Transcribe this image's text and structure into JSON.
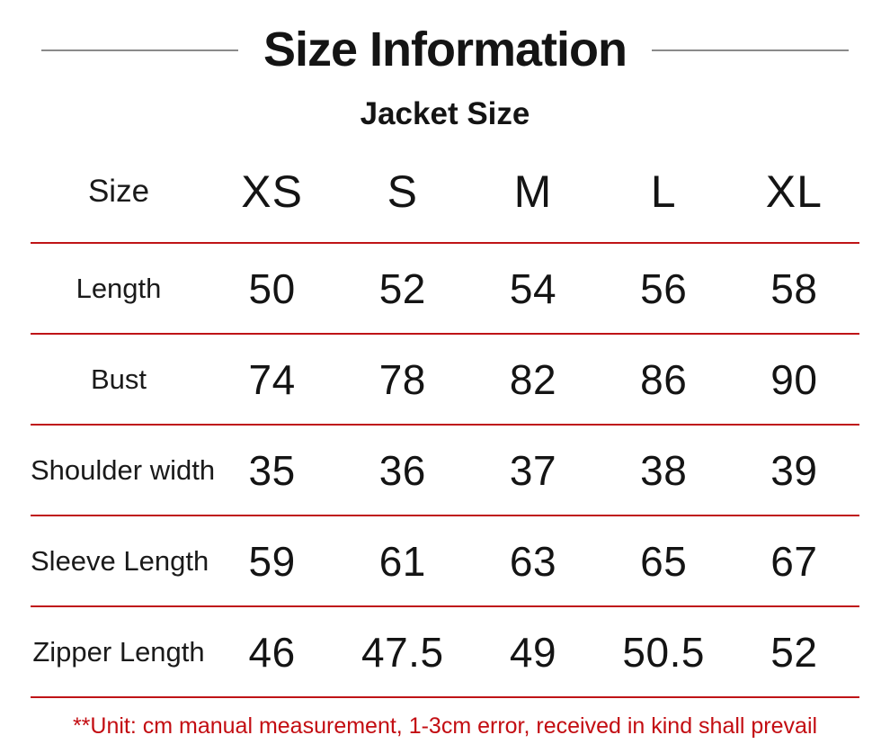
{
  "page": {
    "title": "Size Information",
    "subtitle": "Jacket Size",
    "footnote": "**Unit: cm manual measurement, 1-3cm error, received in kind shall prevail"
  },
  "colors": {
    "divider_red": "#bf1417",
    "footnote_red": "#c30d12",
    "title_line_gray": "#8a8a8a",
    "text_black": "#141414"
  },
  "size_table": {
    "header_label": "Size",
    "sizes": [
      "XS",
      "S",
      "M",
      "L",
      "XL"
    ],
    "rows": [
      {
        "label": "Length",
        "values": [
          "50",
          "52",
          "54",
          "56",
          "58"
        ]
      },
      {
        "label": "Bust",
        "values": [
          "74",
          "78",
          "82",
          "86",
          "90"
        ]
      },
      {
        "label": "Shoulder width",
        "values": [
          "35",
          "36",
          "37",
          "38",
          "39"
        ]
      },
      {
        "label": "Sleeve Length",
        "values": [
          "59",
          "61",
          "63",
          "65",
          "67"
        ]
      },
      {
        "label": "Zipper Length",
        "values": [
          "46",
          "47.5",
          "49",
          "50.5",
          "52"
        ]
      }
    ]
  }
}
